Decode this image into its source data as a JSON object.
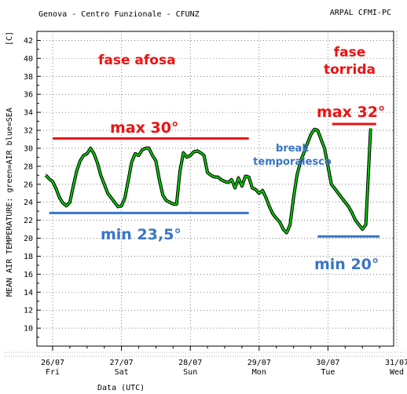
{
  "header": {
    "left": "Genova - Centro Funzionale - CFUNZ",
    "right": "ARPAL CFMI-PC"
  },
  "chart_data": {
    "type": "line",
    "ylabel_unit": "[C]",
    "ylabel": "MEAN AIR TEMPERATURE: green=AIR  blue=SEA",
    "xlabel": "Data (UTC)",
    "ylim": [
      8,
      43
    ],
    "yticks": [
      10,
      12,
      14,
      16,
      18,
      20,
      22,
      24,
      26,
      28,
      30,
      32,
      34,
      36,
      38,
      40,
      42
    ],
    "xlim": [
      0,
      5.2
    ],
    "xticks": [
      {
        "x": 0,
        "date": "26/07",
        "day": "Fri"
      },
      {
        "x": 1,
        "date": "27/07",
        "day": "Sat"
      },
      {
        "x": 2,
        "date": "28/07",
        "day": "Sun"
      },
      {
        "x": 3,
        "date": "29/07",
        "day": "Mon"
      },
      {
        "x": 4,
        "date": "30/07",
        "day": "Tue"
      },
      {
        "x": 5,
        "date": "31/07",
        "day": "Wed"
      }
    ],
    "grid": true,
    "series": [
      {
        "color": "#00cc00",
        "x": [
          -0.1,
          -0.05,
          0.0,
          0.05,
          0.1,
          0.15,
          0.2,
          0.25,
          0.3,
          0.35,
          0.4,
          0.45,
          0.5,
          0.55,
          0.6,
          0.65,
          0.7,
          0.75,
          0.8,
          0.85,
          0.9,
          0.95,
          1.0,
          1.05,
          1.1,
          1.15,
          1.2,
          1.25,
          1.3,
          1.35,
          1.4,
          1.45,
          1.5,
          1.55,
          1.6,
          1.65,
          1.7,
          1.75,
          1.8,
          1.85,
          1.9,
          1.95,
          2.0,
          2.05,
          2.1,
          2.15,
          2.2,
          2.25,
          2.3,
          2.35,
          2.4,
          2.45,
          2.5,
          2.55,
          2.6,
          2.65,
          2.7,
          2.75,
          2.8,
          2.85,
          2.9,
          2.95,
          3.0,
          3.05,
          3.1,
          3.15,
          3.2,
          3.25,
          3.3,
          3.35,
          3.4,
          3.45,
          3.5,
          3.55,
          3.6,
          3.65,
          3.7,
          3.75,
          3.8,
          3.85,
          3.9,
          3.95,
          4.0,
          4.05,
          4.1,
          4.15,
          4.2,
          4.25,
          4.3,
          4.35,
          4.4,
          4.45,
          4.5,
          4.55,
          4.62
        ],
        "values": [
          27.0,
          26.6,
          26.3,
          25.5,
          24.5,
          23.9,
          23.6,
          24.0,
          25.8,
          27.5,
          28.6,
          29.2,
          29.4,
          30.0,
          29.4,
          28.4,
          27.0,
          26.0,
          25.0,
          24.5,
          24.0,
          23.5,
          23.6,
          24.5,
          26.5,
          28.5,
          29.4,
          29.2,
          29.8,
          30.0,
          30.0,
          29.2,
          28.6,
          26.5,
          24.8,
          24.2,
          24.0,
          23.8,
          23.8,
          27.5,
          29.5,
          29.0,
          29.2,
          29.6,
          29.7,
          29.5,
          29.2,
          27.3,
          27.0,
          26.8,
          26.8,
          26.5,
          26.3,
          26.2,
          26.5,
          25.6,
          26.7,
          25.8,
          26.9,
          26.8,
          25.6,
          25.4,
          25.0,
          25.3,
          24.5,
          23.5,
          22.7,
          22.2,
          21.8,
          21.0,
          20.6,
          21.5,
          24.5,
          27.0,
          28.5,
          29.5,
          30.5,
          31.5,
          32.1,
          32.0,
          31.0,
          30.0,
          28.0,
          26.0,
          25.5,
          25.0,
          24.5,
          24.0,
          23.5,
          22.8,
          22.0,
          21.5,
          21.0,
          21.5,
          32.2
        ]
      }
    ],
    "annotations": [
      {
        "text": "fase afosa",
        "color": "#ee1111"
      },
      {
        "text": "fase",
        "color": "#ee1111"
      },
      {
        "text": "torrida",
        "color": "#ee1111"
      },
      {
        "text": "max 30°",
        "color": "#ee1111"
      },
      {
        "text": "max 32°",
        "color": "#ee1111"
      },
      {
        "text": "break",
        "color": "#3a75c4"
      },
      {
        "text": "temporalesco",
        "color": "#3a75c4"
      },
      {
        "text": "min 23,5°",
        "color": "#3a75c4"
      },
      {
        "text": "min 20°",
        "color": "#3a75c4"
      }
    ],
    "reference_lines": [
      {
        "label": "max 30°",
        "value": 31.1,
        "x_range": [
          0.0,
          2.85
        ],
        "color": "#ee1111"
      },
      {
        "label": "max 32°",
        "value": 32.7,
        "x_range": [
          4.06,
          4.7
        ],
        "color": "#ee1111"
      },
      {
        "label": "min 23,5°",
        "value": 22.8,
        "x_range": [
          -0.05,
          2.85
        ],
        "color": "#3a75c4"
      },
      {
        "label": "min 20°",
        "value": 20.2,
        "x_range": [
          3.85,
          4.75
        ],
        "color": "#3a75c4"
      }
    ]
  }
}
